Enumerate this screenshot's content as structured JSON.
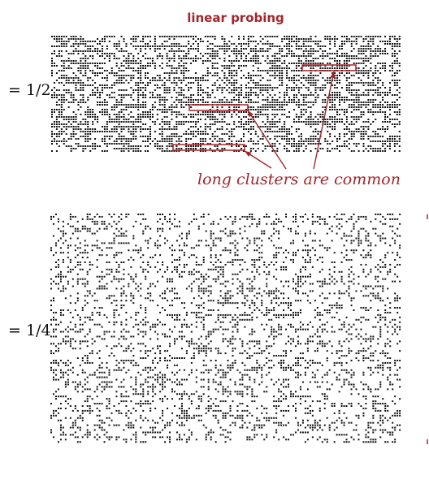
{
  "title": "linear probing",
  "panels": [
    {
      "alpha_label": "= 1/2",
      "load": 0.5
    },
    {
      "alpha_label": "= 1/4",
      "load": 0.25
    }
  ],
  "annotation": "long clusters are common",
  "colors": {
    "accent": "#a3262b",
    "dot": "#111111"
  }
}
